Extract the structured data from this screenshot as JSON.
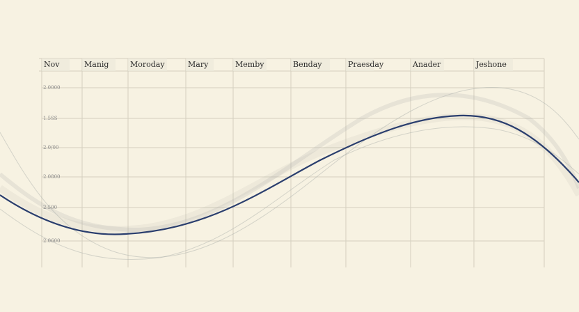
{
  "columns": [
    "Nov",
    "Manig",
    "Moroday",
    "Mary",
    "Memby",
    "Benday",
    "Praesday",
    "Anader",
    "Jeshone"
  ],
  "rows": [
    "2.0000",
    "1.5SS",
    "2.0/00",
    "2.0800",
    "2.500",
    "2.0600"
  ]
}
